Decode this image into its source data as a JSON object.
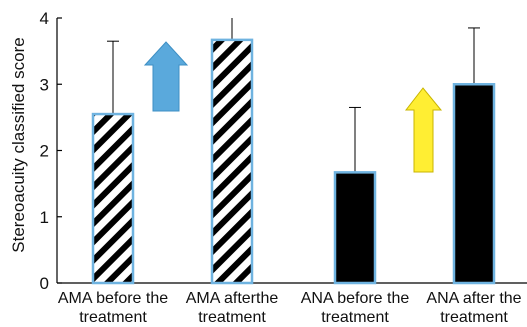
{
  "chart_data": {
    "type": "bar",
    "ylabel": "Stereoacuity classified score",
    "xlabel": "",
    "ylim": [
      0,
      4
    ],
    "yticks": [
      0,
      1,
      2,
      3,
      4
    ],
    "grid": false,
    "categories": [
      [
        "AMA before the",
        "treatment"
      ],
      [
        "AMA afterthe",
        "treatment"
      ],
      [
        "ANA before the",
        "treatment"
      ],
      [
        "ANA after the",
        "treatment"
      ]
    ],
    "values": [
      2.55,
      3.67,
      1.67,
      3.0
    ],
    "error_upper": [
      3.65,
      4.0,
      2.65,
      3.85
    ],
    "bar_fills": [
      "hatched",
      "hatched",
      "solid",
      "solid"
    ],
    "colors": {
      "bar_edge": "#6fb3e0",
      "hatch": "#000000",
      "solid": "#000000",
      "arrow_blue": "#5aa9dc",
      "arrow_yellow": "#ffee33"
    },
    "annotations": [
      {
        "type": "up-arrow",
        "color": "blue",
        "between": [
          "AMA before the treatment",
          "AMA afterthe treatment"
        ]
      },
      {
        "type": "up-arrow",
        "color": "yellow",
        "between": [
          "ANA before the treatment",
          "ANA after the treatment"
        ]
      }
    ]
  }
}
